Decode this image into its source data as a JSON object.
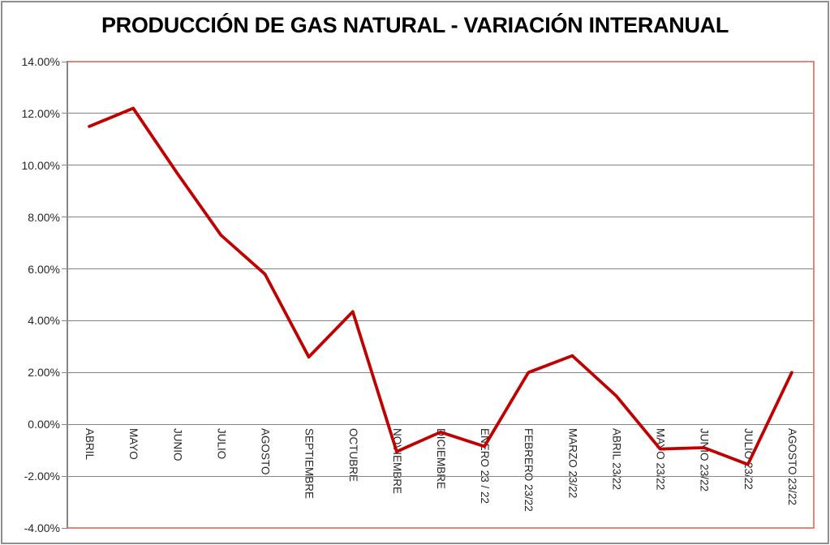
{
  "figure": {
    "background": "#FFFFFF",
    "outer_border_color": "#8F8F8F"
  },
  "chart_data": {
    "type": "line",
    "title": "PRODUCCIÓN DE GAS NATURAL - VARIACIÓN INTERANUAL",
    "categories": [
      "ABRIL",
      "MAYO",
      "JUNIO",
      "JULIO",
      "AGOSTO",
      "SEPTIEMBRE",
      "OCTUBRE",
      "NOVIEMBRE",
      "DICIEMBRE",
      "ENERO 23 / 22",
      "FEBRERO 23/22",
      "MARZO 23/22",
      "ABRIL 23/22",
      "MAYO 23/22",
      "JUNIO 23/22",
      "JULIO 23/22",
      "AGOSTO 23/22"
    ],
    "values": [
      11.5,
      12.2,
      9.7,
      7.3,
      5.8,
      2.6,
      4.35,
      -1.05,
      -0.3,
      -0.85,
      2.0,
      2.65,
      1.1,
      -0.95,
      -0.9,
      -1.55,
      2.0
    ],
    "unit": "percent",
    "ylim": [
      -4,
      14
    ],
    "ytick_step": 2,
    "ytick_labels": [
      "14.00%",
      "12.00%",
      "10.00%",
      "8.00%",
      "6.00%",
      "4.00%",
      "2.00%",
      "0.00%",
      "-2.00%",
      "-4.00%"
    ],
    "xlabel": "",
    "ylabel": "",
    "grid": true,
    "legend": "none",
    "x_tick_rotation": "vertical-down",
    "colors": {
      "line": "#C00000",
      "gridline": "#868686",
      "plot_border": "#E8837C",
      "axis_text": "#262626",
      "title_text": "#000000"
    }
  }
}
